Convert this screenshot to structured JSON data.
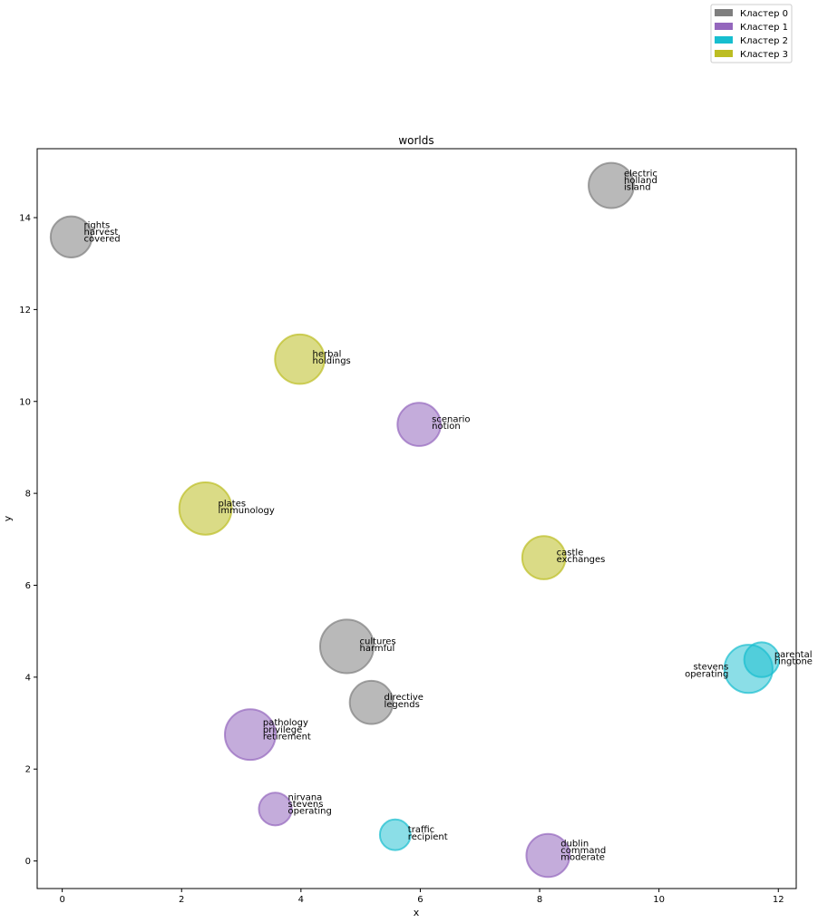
{
  "chart_data": {
    "type": "scatter",
    "title": "worlds",
    "xlabel": "x",
    "ylabel": "y",
    "xlim": [
      -0.42,
      12.3
    ],
    "ylim": [
      -0.6,
      15.5
    ],
    "xticks": [
      0,
      2,
      4,
      6,
      8,
      10,
      12
    ],
    "yticks": [
      0,
      2,
      4,
      6,
      8,
      10,
      12,
      14
    ],
    "grid": false,
    "legend_position": "top-right (outside plot)",
    "legend": [
      {
        "label": "Кластер 0",
        "color": "#7f7f7f"
      },
      {
        "label": "Кластер 1",
        "color": "#9467bd"
      },
      {
        "label": "Кластер 2",
        "color": "#17becf"
      },
      {
        "label": "Кластер 3",
        "color": "#bcbd22"
      }
    ],
    "points": [
      {
        "x": 0.15,
        "y": 13.58,
        "cluster": 0,
        "size": 0.55,
        "labels": [
          "rights",
          "harvest",
          "covered"
        ],
        "label_side": "right"
      },
      {
        "x": 9.2,
        "y": 14.7,
        "cluster": 0,
        "size": 0.65,
        "labels": [
          "electric",
          "holland",
          "island"
        ],
        "label_side": "right"
      },
      {
        "x": 4.77,
        "y": 4.67,
        "cluster": 0,
        "size": 0.85,
        "labels": [
          "cultures",
          "harmful"
        ],
        "label_side": "right"
      },
      {
        "x": 5.18,
        "y": 3.45,
        "cluster": 0,
        "size": 0.6,
        "labels": [
          "directive",
          "legends"
        ],
        "label_side": "right"
      },
      {
        "x": 5.98,
        "y": 9.5,
        "cluster": 1,
        "size": 0.6,
        "labels": [
          "scenario",
          "notion"
        ],
        "label_side": "right"
      },
      {
        "x": 3.15,
        "y": 2.75,
        "cluster": 1,
        "size": 0.78,
        "labels": [
          "pathology",
          "privilege",
          "retirement"
        ],
        "label_side": "right"
      },
      {
        "x": 3.57,
        "y": 1.13,
        "cluster": 1,
        "size": 0.35,
        "labels": [
          "nirvana",
          "stevens",
          "operating"
        ],
        "label_side": "right"
      },
      {
        "x": 8.14,
        "y": 0.12,
        "cluster": 1,
        "size": 0.6,
        "labels": [
          "dublin",
          "command",
          "moderate"
        ],
        "label_side": "right"
      },
      {
        "x": 11.5,
        "y": 4.18,
        "cluster": 2,
        "size": 0.72,
        "labels": [
          "stevens",
          "operating"
        ],
        "label_side": "left"
      },
      {
        "x": 11.72,
        "y": 4.38,
        "cluster": 2,
        "size": 0.4,
        "labels": [
          "parental",
          "ringtone"
        ],
        "label_side": "right"
      },
      {
        "x": 5.58,
        "y": 0.57,
        "cluster": 2,
        "size": 0.3,
        "labels": [
          "traffic",
          "recipient"
        ],
        "label_side": "right"
      },
      {
        "x": 3.98,
        "y": 10.92,
        "cluster": 3,
        "size": 0.75,
        "labels": [
          "herbal",
          "holdings"
        ],
        "label_side": "right"
      },
      {
        "x": 2.4,
        "y": 7.67,
        "cluster": 3,
        "size": 0.82,
        "labels": [
          "plates",
          "immunology"
        ],
        "label_side": "right"
      },
      {
        "x": 8.07,
        "y": 6.6,
        "cluster": 3,
        "size": 0.6,
        "labels": [
          "castle",
          "exchanges"
        ],
        "label_side": "right"
      }
    ]
  }
}
